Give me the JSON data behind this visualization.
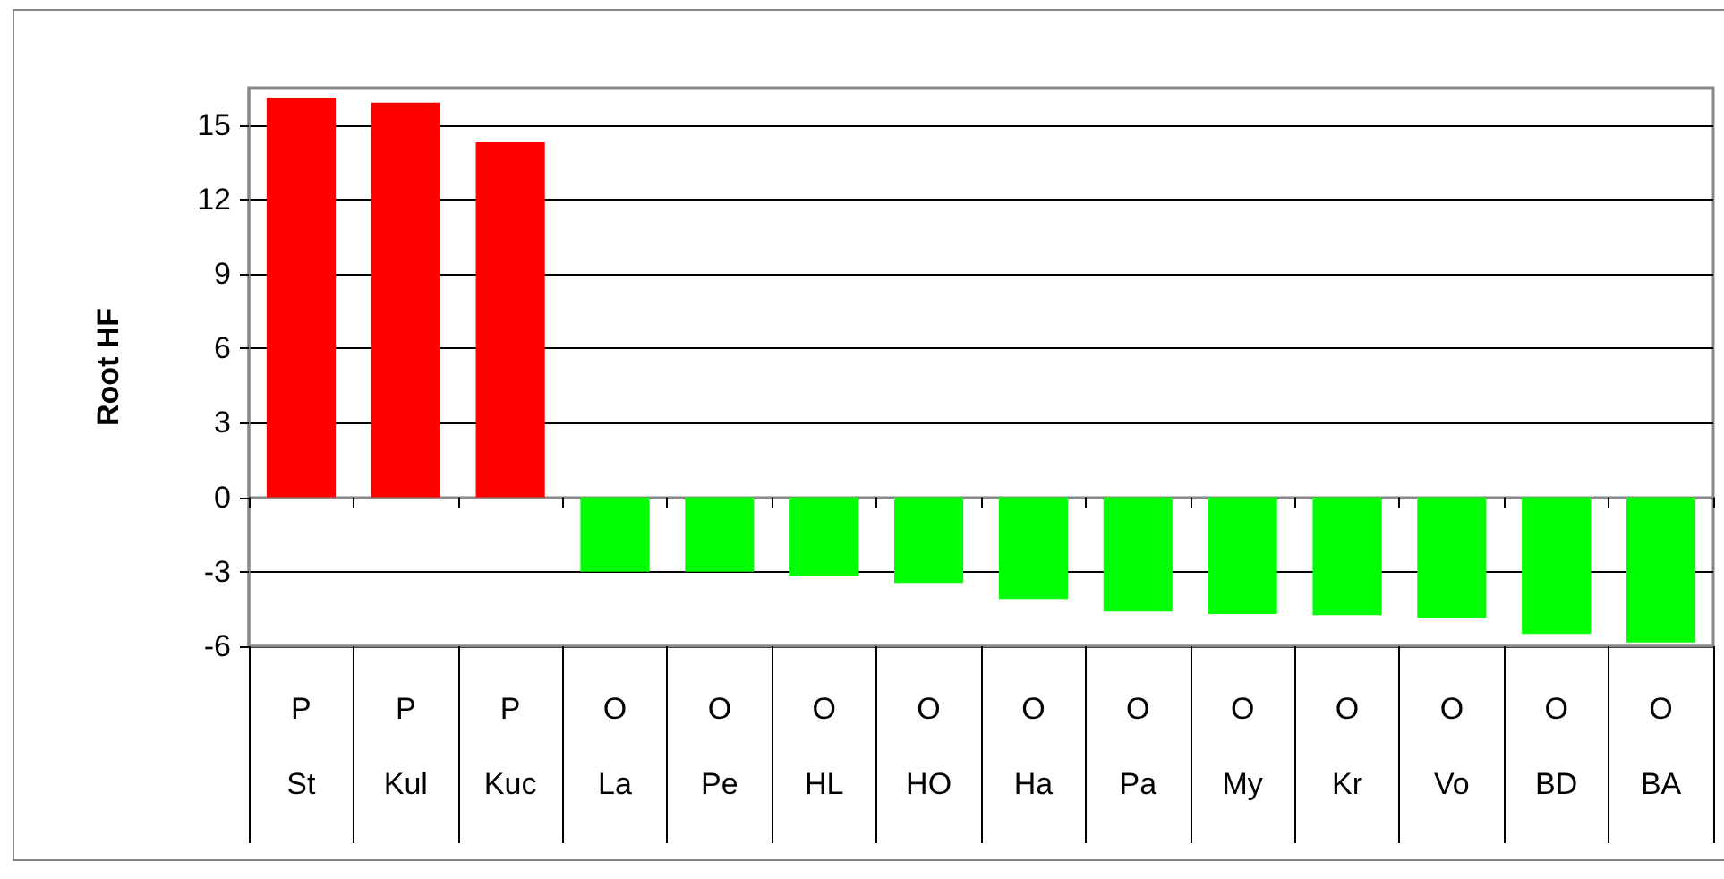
{
  "chart_data": {
    "type": "bar",
    "ylabel": "Root HF",
    "categories": [
      "P\nSt",
      "P\nKul",
      "P\nKuc",
      "O\nLa",
      "O\nPe",
      "O\nHL",
      "O\nHO",
      "O\nHa",
      "O\nPa",
      "O\nMy",
      "O\nKr",
      "O\nVo",
      "O\nBD",
      "O\nBA"
    ],
    "values": [
      16.1,
      15.9,
      14.3,
      -3.0,
      -3.0,
      -3.15,
      -3.45,
      -4.1,
      -4.6,
      -4.7,
      -4.75,
      -4.85,
      -5.5,
      -5.85
    ],
    "colors": [
      "#ff0000",
      "#ff0000",
      "#ff0000",
      "#00ff00",
      "#00ff00",
      "#00ff00",
      "#00ff00",
      "#00ff00",
      "#00ff00",
      "#00ff00",
      "#00ff00",
      "#00ff00",
      "#00ff00",
      "#00ff00"
    ],
    "ylim": [
      -6,
      16.5
    ],
    "yticks": [
      -6,
      -3,
      0,
      3,
      6,
      9,
      12,
      15
    ],
    "grid": "y"
  }
}
